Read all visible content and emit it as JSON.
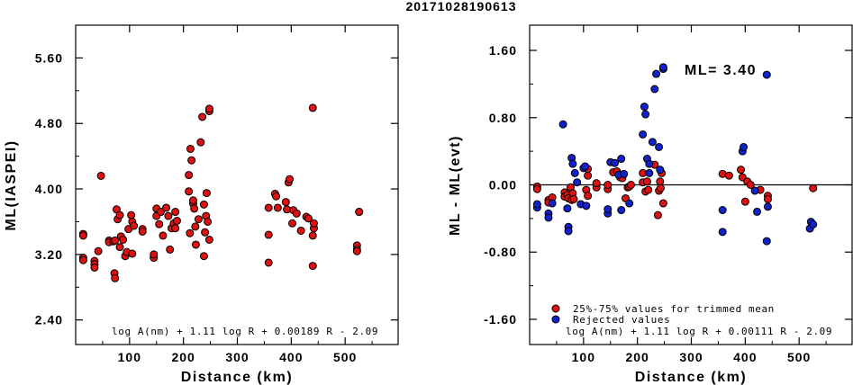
{
  "title": "20171028190613",
  "colors": {
    "accepted": "#dd1111",
    "rejected": "#1122cc",
    "stroke": "#000000"
  },
  "chart_data": [
    {
      "type": "scatter",
      "xlabel": "Distance (km)",
      "ylabel": "ML(IASPEI)",
      "xlim": [
        0,
        600
      ],
      "ylim": [
        2.1,
        6.0
      ],
      "xticks": [
        "100",
        "200",
        "300",
        "400",
        "500"
      ],
      "yticks": [
        "2.40",
        "3.20",
        "4.00",
        "4.80",
        "5.60"
      ],
      "formula": "log A(nm) + 1.11 log R + 0.00189 R - 2.09",
      "series": [
        {
          "color": "accepted",
          "points": [
            [
              14,
              3.45
            ],
            [
              14,
              3.43
            ],
            [
              14,
              3.16
            ],
            [
              14,
              3.13
            ],
            [
              35,
              3.12
            ],
            [
              35,
              3.08
            ],
            [
              35,
              3.04
            ],
            [
              42,
              3.24
            ],
            [
              47,
              4.16
            ],
            [
              62,
              3.37
            ],
            [
              62,
              3.35
            ],
            [
              70,
              3.36
            ],
            [
              73,
              3.37
            ],
            [
              72,
              2.97
            ],
            [
              73,
              2.91
            ],
            [
              76,
              3.75
            ],
            [
              78,
              3.63
            ],
            [
              82,
              3.29
            ],
            [
              84,
              3.42
            ],
            [
              82,
              3.68
            ],
            [
              88,
              3.38
            ],
            [
              92,
              3.18
            ],
            [
              95,
              3.23
            ],
            [
              98,
              3.51
            ],
            [
              103,
              3.68
            ],
            [
              105,
              3.6
            ],
            [
              105,
              3.21
            ],
            [
              108,
              3.55
            ],
            [
              124,
              3.51
            ],
            [
              124,
              3.48
            ],
            [
              145,
              3.16
            ],
            [
              145,
              3.2
            ],
            [
              150,
              3.76
            ],
            [
              150,
              3.67
            ],
            [
              155,
              3.57
            ],
            [
              158,
              3.72
            ],
            [
              162,
              3.43
            ],
            [
              168,
              3.77
            ],
            [
              172,
              3.67
            ],
            [
              175,
              3.26
            ],
            [
              178,
              3.52
            ],
            [
              182,
              3.58
            ],
            [
              185,
              3.52
            ],
            [
              185,
              3.72
            ],
            [
              188,
              3.61
            ],
            [
              210,
              4.17
            ],
            [
              210,
              3.97
            ],
            [
              212,
              3.46
            ],
            [
              213,
              4.49
            ],
            [
              215,
              4.35
            ],
            [
              218,
              3.82
            ],
            [
              218,
              3.86
            ],
            [
              220,
              3.76
            ],
            [
              222,
              3.54
            ],
            [
              223,
              3.32
            ],
            [
              228,
              3.63
            ],
            [
              232,
              4.57
            ],
            [
              235,
              4.88
            ],
            [
              238,
              3.81
            ],
            [
              238,
              3.18
            ],
            [
              240,
              3.47
            ],
            [
              242,
              3.67
            ],
            [
              243,
              3.95
            ],
            [
              245,
              3.6
            ],
            [
              248,
              3.38
            ],
            [
              248,
              4.95
            ],
            [
              248,
              4.98
            ],
            [
              358,
              3.77
            ],
            [
              358,
              3.44
            ],
            [
              358,
              3.1
            ],
            [
              370,
              3.94
            ],
            [
              372,
              3.91
            ],
            [
              375,
              3.77
            ],
            [
              390,
              3.84
            ],
            [
              392,
              3.75
            ],
            [
              395,
              4.08
            ],
            [
              397,
              4.12
            ],
            [
              402,
              3.58
            ],
            [
              404,
              3.74
            ],
            [
              410,
              3.7
            ],
            [
              418,
              3.49
            ],
            [
              428,
              3.66
            ],
            [
              432,
              3.64
            ],
            [
              440,
              4.99
            ],
            [
              440,
              3.06
            ],
            [
              440,
              3.43
            ],
            [
              442,
              3.52
            ],
            [
              442,
              3.58
            ],
            [
              522,
              3.31
            ],
            [
              522,
              3.26
            ],
            [
              522,
              3.24
            ],
            [
              526,
              3.72
            ],
            [
              526,
              3.72
            ]
          ]
        }
      ]
    },
    {
      "type": "scatter",
      "xlabel": "Distance (km)",
      "ylabel": "ML - ML(evt)",
      "xlim": [
        0,
        600
      ],
      "ylim": [
        -1.9,
        1.9
      ],
      "xticks": [
        "100",
        "200",
        "300",
        "400",
        "500"
      ],
      "yticks": [
        "-1.60",
        "-0.80",
        "0.00",
        "0.80",
        "1.60"
      ],
      "annotation": "ML= 3.40",
      "legend": {
        "placement": "bottom-left",
        "items": [
          "25%-75% values for trimmed mean",
          "Rejected values"
        ]
      },
      "formula": "log A(nm) + 1.11 log R + 0.00111 R - 2.09",
      "series": [
        {
          "color": "accepted",
          "points": [
            [
              14,
              -0.02
            ],
            [
              14,
              -0.05
            ],
            [
              35,
              -0.18
            ],
            [
              35,
              -0.21
            ],
            [
              42,
              -0.15
            ],
            [
              65,
              -0.09
            ],
            [
              65,
              -0.14
            ],
            [
              70,
              -0.12
            ],
            [
              72,
              -0.16
            ],
            [
              76,
              -0.03
            ],
            [
              78,
              -0.18
            ],
            [
              80,
              -0.1
            ],
            [
              82,
              -0.17
            ],
            [
              105,
              -0.06
            ],
            [
              108,
              0.11
            ],
            [
              108,
              -0.13
            ],
            [
              108,
              0.19
            ],
            [
              124,
              -0.03
            ],
            [
              124,
              0.02
            ],
            [
              145,
              -0.05
            ],
            [
              145,
              0.0
            ],
            [
              155,
              0.15
            ],
            [
              162,
              0.16
            ],
            [
              168,
              0.09
            ],
            [
              172,
              0.08
            ],
            [
              178,
              -0.16
            ],
            [
              182,
              -0.03
            ],
            [
              185,
              -0.02
            ],
            [
              188,
              0.0
            ],
            [
              210,
              0.14
            ],
            [
              210,
              0.03
            ],
            [
              215,
              -0.08
            ],
            [
              218,
              0.04
            ],
            [
              220,
              -0.06
            ],
            [
              232,
              0.24
            ],
            [
              238,
              -0.36
            ],
            [
              240,
              -0.07
            ],
            [
              242,
              0.04
            ],
            [
              243,
              -0.04
            ],
            [
              245,
              0.14
            ],
            [
              248,
              -0.22
            ],
            [
              358,
              0.13
            ],
            [
              370,
              0.11
            ],
            [
              392,
              0.18
            ],
            [
              395,
              0.09
            ],
            [
              400,
              -0.2
            ],
            [
              404,
              0.04
            ],
            [
              410,
              0.0
            ],
            [
              428,
              -0.06
            ],
            [
              442,
              -0.13
            ],
            [
              442,
              -0.17
            ],
            [
              526,
              -0.04
            ]
          ]
        },
        {
          "color": "rejected",
          "points": [
            [
              14,
              -0.27
            ],
            [
              14,
              -0.23
            ],
            [
              35,
              -0.34
            ],
            [
              35,
              -0.39
            ],
            [
              42,
              -0.22
            ],
            [
              62,
              0.72
            ],
            [
              70,
              -0.28
            ],
            [
              72,
              -0.5
            ],
            [
              72,
              -0.55
            ],
            [
              78,
              0.32
            ],
            [
              80,
              0.25
            ],
            [
              84,
              0.14
            ],
            [
              88,
              0.03
            ],
            [
              95,
              -0.23
            ],
            [
              100,
              0.2
            ],
            [
              103,
              0.22
            ],
            [
              105,
              -0.25
            ],
            [
              145,
              -0.34
            ],
            [
              145,
              -0.29
            ],
            [
              150,
              0.27
            ],
            [
              158,
              0.26
            ],
            [
              165,
              0.12
            ],
            [
              170,
              0.31
            ],
            [
              170,
              -0.3
            ],
            [
              175,
              0.13
            ],
            [
              185,
              -0.22
            ],
            [
              210,
              0.6
            ],
            [
              213,
              0.93
            ],
            [
              215,
              0.84
            ],
            [
              218,
              0.31
            ],
            [
              222,
              0.14
            ],
            [
              222,
              0.25
            ],
            [
              228,
              0.51
            ],
            [
              232,
              1.14
            ],
            [
              235,
              1.32
            ],
            [
              240,
              0.45
            ],
            [
              242,
              0.18
            ],
            [
              248,
              1.38
            ],
            [
              248,
              1.4
            ],
            [
              358,
              -0.3
            ],
            [
              358,
              -0.56
            ],
            [
              395,
              0.4
            ],
            [
              397,
              0.45
            ],
            [
              418,
              -0.07
            ],
            [
              422,
              -0.32
            ],
            [
              440,
              1.31
            ],
            [
              440,
              -0.67
            ],
            [
              442,
              -0.26
            ],
            [
              520,
              -0.52
            ],
            [
              522,
              -0.44
            ],
            [
              526,
              -0.47
            ]
          ]
        }
      ]
    }
  ]
}
